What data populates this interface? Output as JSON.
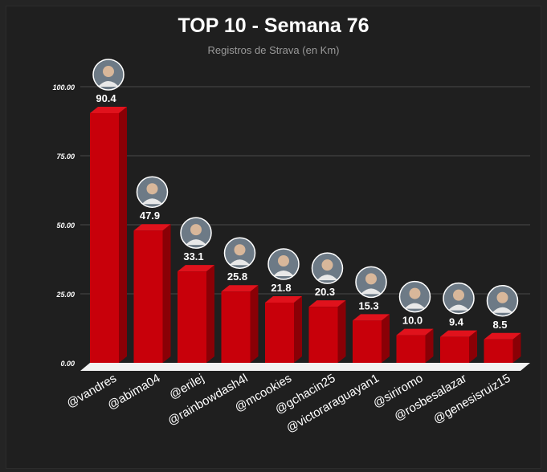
{
  "chart_data": {
    "type": "bar",
    "title": "TOP 10 - Semana 76",
    "subtitle": "Registros de Strava (en Km)",
    "categories": [
      "@vandres",
      "@abima04",
      "@erilej",
      "@rainbowdash4l",
      "@mcookies",
      "@gchacin25",
      "@victoraraguayan1",
      "@siriromo",
      "@rosbesalazar",
      "@genesisruiz15"
    ],
    "values": [
      90.4,
      47.9,
      33.1,
      25.8,
      21.8,
      20.3,
      15.3,
      10.0,
      9.4,
      8.5
    ],
    "value_labels": [
      "90.4",
      "47.9",
      "33.1",
      "25.8",
      "21.8",
      "20.3",
      "15.3",
      "10.0",
      "9.4",
      "8.5"
    ],
    "y_ticks": [
      0,
      25,
      50,
      75,
      100
    ],
    "y_tick_labels": [
      "0.00",
      "25.00",
      "50.00",
      "75.00",
      "100.00"
    ],
    "ylim": [
      0,
      100
    ],
    "xlabel": "",
    "ylabel": "",
    "grid": true,
    "legend": "none",
    "avatar_icons": [
      "avatar-icon",
      "avatar-icon",
      "avatar-icon",
      "avatar-icon",
      "avatar-icon",
      "avatar-icon",
      "avatar-icon",
      "avatar-icon",
      "avatar-icon",
      "avatar-icon"
    ],
    "colors": {
      "bar_front": "#c8000a",
      "bar_side": "#8a0006",
      "bar_top": "#e0121c",
      "background": "#1f1f1f",
      "grid": "#4a4a4a",
      "text": "#ffffff",
      "subtitle": "#9a9a9a"
    }
  }
}
